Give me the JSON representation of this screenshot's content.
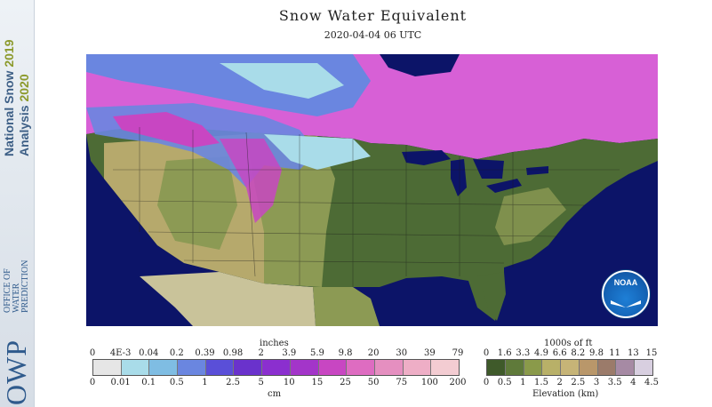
{
  "title": "Snow Water Equivalent",
  "datetime": "2020-04-04 06 UTC",
  "branding": {
    "line1": "National Snow",
    "line1_year": "2019",
    "line2": "Analysis",
    "line2_year": "2020",
    "owp_abbr": "OWP",
    "owp_line1": "OFFICE OF",
    "owp_line2": "WATER",
    "owp_line3": "PREDICTION",
    "noaa": "NOAA"
  },
  "legend_swe": {
    "top_unit": "inches",
    "bottom_unit": "cm",
    "inch_ticks": [
      "0",
      "4E-3",
      "0.04",
      "0.2",
      "0.39",
      "0.98",
      "2",
      "3.9",
      "5.9",
      "9.8",
      "20",
      "30",
      "39",
      "79"
    ],
    "cm_ticks": [
      "0",
      "0.01",
      "0.1",
      "0.5",
      "1",
      "2.5",
      "5",
      "10",
      "15",
      "25",
      "50",
      "75",
      "100",
      "200"
    ],
    "colors": [
      "#e6e6e6",
      "#a9dce9",
      "#7fbde3",
      "#6a86e0",
      "#5a4fd8",
      "#6a32cc",
      "#8b2fcf",
      "#a335c9",
      "#c846c2",
      "#de6cc1",
      "#e58fc0",
      "#eeaec6",
      "#f3ccd2"
    ]
  },
  "legend_elev": {
    "top_unit": "1000s of ft",
    "bottom_unit": "Elevation (km)",
    "ft_ticks": [
      "0",
      "1.6",
      "3.3",
      "4.9",
      "6.6",
      "8.2",
      "9.8",
      "11",
      "13",
      "15"
    ],
    "km_ticks": [
      "0",
      "0.5",
      "1",
      "1.5",
      "2",
      "2.5",
      "3",
      "3.5",
      "4",
      "4.5"
    ],
    "colors": [
      "#3f5a2a",
      "#5f7a3a",
      "#8a9a4a",
      "#b8b068",
      "#c6b477",
      "#b9976a",
      "#9b7b6a",
      "#a68aa4",
      "#d8cfe0"
    ]
  },
  "map_colors": {
    "ocean": "#0c1468",
    "lowland": "#4d6b35",
    "plains": "#8c9a54",
    "highland": "#b6a96c",
    "snow_light": "#a9dce9",
    "snow_mid": "#6a86e0",
    "snow_deep": "#c846c2",
    "canada_snow": "#d760d6",
    "mexico": "#c9c39a",
    "lakes": "#0c1468"
  }
}
